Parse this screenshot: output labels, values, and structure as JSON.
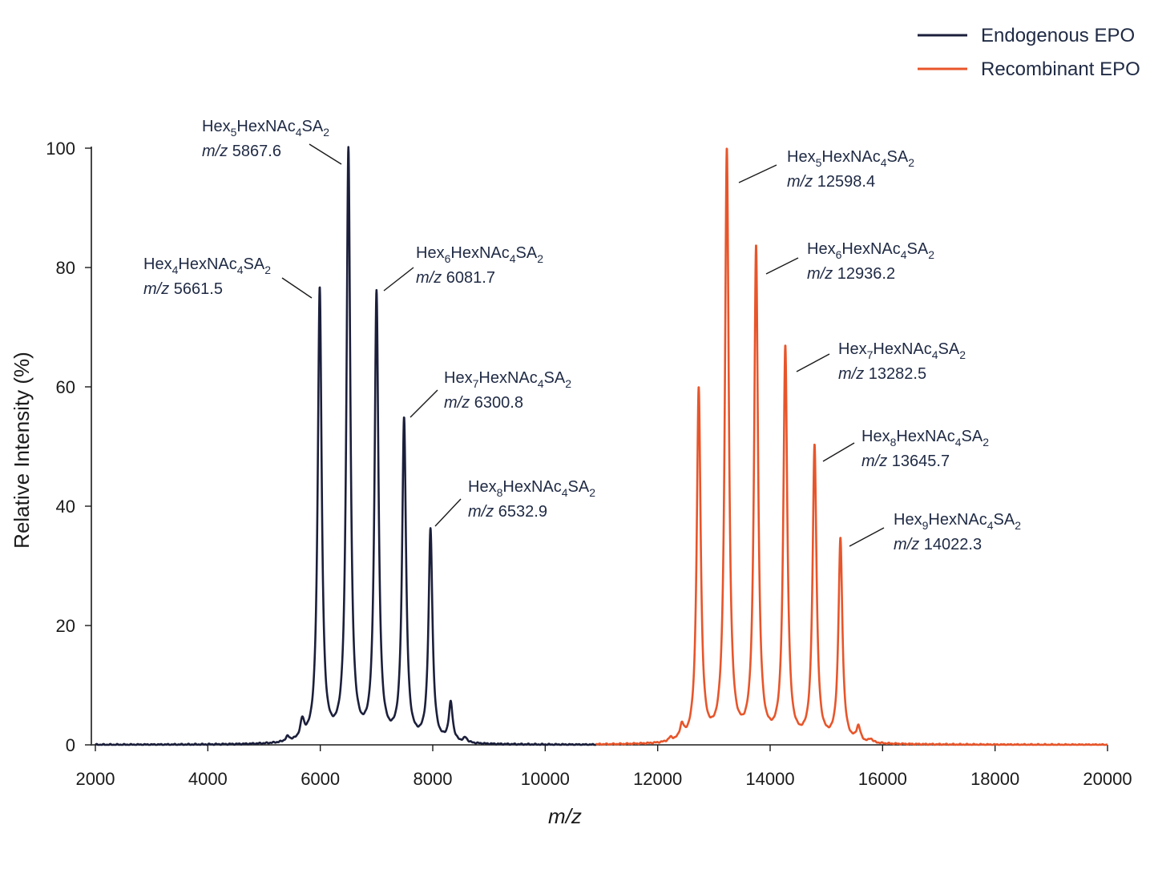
{
  "chart_data": {
    "type": "line",
    "title": "",
    "xlabel": "m/z",
    "ylabel": "Relative Intensity (%)",
    "xlim": [
      2000,
      20000
    ],
    "ylim": [
      0,
      100
    ],
    "x_ticks": [
      "2000",
      "4000",
      "6000",
      "8000",
      "10000",
      "12000",
      "14000",
      "16000",
      "18000",
      "20000"
    ],
    "y_ticks": [
      "0",
      "20",
      "40",
      "60",
      "80",
      "100"
    ],
    "grid": false,
    "legend_position": "top-right",
    "series": [
      {
        "name": "Endogenous EPO",
        "color": "#1b1f3b",
        "x_range": [
          2000,
          10900
        ],
        "peaks": [
          {
            "x": 5420,
            "y": 0.8
          },
          {
            "x": 5680,
            "y": 3
          },
          {
            "x": 5990,
            "y": 76
          },
          {
            "x": 6500,
            "y": 99
          },
          {
            "x": 7000,
            "y": 75
          },
          {
            "x": 7490,
            "y": 54
          },
          {
            "x": 7960,
            "y": 35.5
          },
          {
            "x": 8320,
            "y": 6.5
          },
          {
            "x": 8580,
            "y": 0.8
          }
        ]
      },
      {
        "name": "Recombinant EPO",
        "color": "#e8552a",
        "x_range": [
          10900,
          20000
        ],
        "peaks": [
          {
            "x": 12230,
            "y": 0.6
          },
          {
            "x": 12430,
            "y": 2.3
          },
          {
            "x": 12730,
            "y": 59
          },
          {
            "x": 13230,
            "y": 99
          },
          {
            "x": 13750,
            "y": 82.5
          },
          {
            "x": 14270,
            "y": 66
          },
          {
            "x": 14790,
            "y": 49.5
          },
          {
            "x": 15250,
            "y": 34
          },
          {
            "x": 15570,
            "y": 2.5
          },
          {
            "x": 15790,
            "y": 0.6
          }
        ]
      }
    ],
    "annotations": [
      {
        "peak_x": 5990,
        "peak_y": 76,
        "composition": [
          [
            "Hex",
            ""
          ],
          [
            "4",
            "sub"
          ],
          [
            "HexNAc",
            ""
          ],
          [
            "4",
            "sub"
          ],
          [
            "SA",
            ""
          ],
          [
            "2",
            "sub"
          ]
        ],
        "mz_prefix": "m/z",
        "mz_value": "5661.5"
      },
      {
        "peak_x": 6500,
        "peak_y": 99,
        "composition": [
          [
            "Hex",
            ""
          ],
          [
            "5",
            "sub"
          ],
          [
            "HexNAc",
            ""
          ],
          [
            "4",
            "sub"
          ],
          [
            "SA",
            ""
          ],
          [
            "2",
            "sub"
          ]
        ],
        "mz_prefix": "m/z",
        "mz_value": "5867.6"
      },
      {
        "peak_x": 7000,
        "peak_y": 75,
        "composition": [
          [
            "Hex",
            ""
          ],
          [
            "6",
            "sub"
          ],
          [
            "HexNAc",
            ""
          ],
          [
            "4",
            "sub"
          ],
          [
            "SA",
            ""
          ],
          [
            "2",
            "sub"
          ]
        ],
        "mz_prefix": "m/z",
        "mz_value": "6081.7"
      },
      {
        "peak_x": 7490,
        "peak_y": 54,
        "composition": [
          [
            "Hex",
            ""
          ],
          [
            "7",
            "sub"
          ],
          [
            "HexNAc",
            ""
          ],
          [
            "4",
            "sub"
          ],
          [
            "SA",
            ""
          ],
          [
            "2",
            "sub"
          ]
        ],
        "mz_prefix": "m/z",
        "mz_value": "6300.8"
      },
      {
        "peak_x": 7960,
        "peak_y": 35.5,
        "composition": [
          [
            "Hex",
            ""
          ],
          [
            "8",
            "sub"
          ],
          [
            "HexNAc",
            ""
          ],
          [
            "4",
            "sub"
          ],
          [
            "SA",
            ""
          ],
          [
            "2",
            "sub"
          ]
        ],
        "mz_prefix": "m/z",
        "mz_value": "6532.9"
      },
      {
        "peak_x": 13230,
        "peak_y": 99,
        "composition": [
          [
            "Hex",
            ""
          ],
          [
            "5",
            "sub"
          ],
          [
            "HexNAc",
            ""
          ],
          [
            "4",
            "sub"
          ],
          [
            "SA",
            ""
          ],
          [
            "2",
            "sub"
          ]
        ],
        "mz_prefix": "m/z",
        "mz_value": "12598.4"
      },
      {
        "peak_x": 13750,
        "peak_y": 82.5,
        "composition": [
          [
            "Hex",
            ""
          ],
          [
            "6",
            "sub"
          ],
          [
            "HexNAc",
            ""
          ],
          [
            "4",
            "sub"
          ],
          [
            "SA",
            ""
          ],
          [
            "2",
            "sub"
          ]
        ],
        "mz_prefix": "m/z",
        "mz_value": "12936.2"
      },
      {
        "peak_x": 14270,
        "peak_y": 66,
        "composition": [
          [
            "Hex",
            ""
          ],
          [
            "7",
            "sub"
          ],
          [
            "HexNAc",
            ""
          ],
          [
            "4",
            "sub"
          ],
          [
            "SA",
            ""
          ],
          [
            "2",
            "sub"
          ]
        ],
        "mz_prefix": "m/z",
        "mz_value": "13282.5"
      },
      {
        "peak_x": 14790,
        "peak_y": 49.5,
        "composition": [
          [
            "Hex",
            ""
          ],
          [
            "8",
            "sub"
          ],
          [
            "HexNAc",
            ""
          ],
          [
            "4",
            "sub"
          ],
          [
            "SA",
            ""
          ],
          [
            "2",
            "sub"
          ]
        ],
        "mz_prefix": "m/z",
        "mz_value": "13645.7"
      },
      {
        "peak_x": 15250,
        "peak_y": 34,
        "composition": [
          [
            "Hex",
            ""
          ],
          [
            "9",
            "sub"
          ],
          [
            "HexNAc",
            ""
          ],
          [
            "4",
            "sub"
          ],
          [
            "SA",
            ""
          ],
          [
            "2",
            "sub"
          ]
        ],
        "mz_prefix": "m/z",
        "mz_value": "14022.3"
      }
    ]
  }
}
